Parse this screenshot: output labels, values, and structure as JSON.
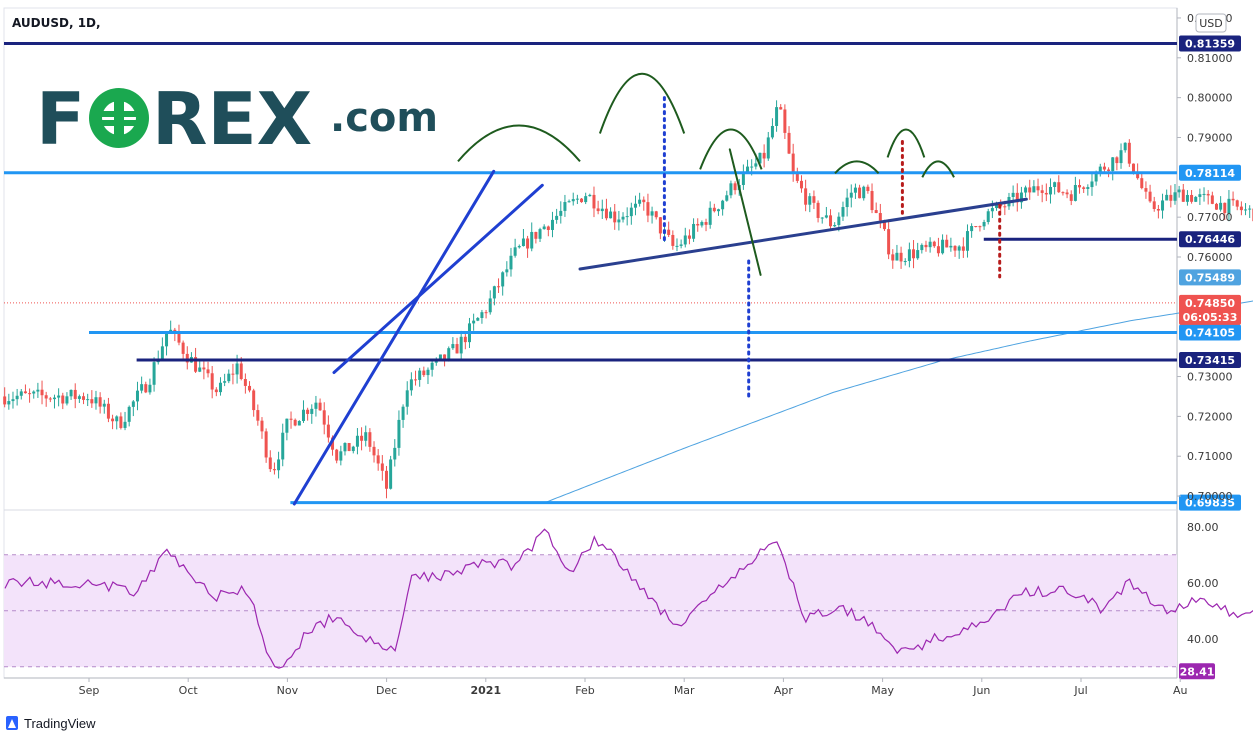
{
  "header": {
    "symbol": "AUDUSD, 1D,",
    "currency": "USD"
  },
  "logo": {
    "text_f": "F",
    "text_rest": "REX",
    "text_com": ".com",
    "brand_color": "#1f4e5a",
    "accent_color": "#1aa84f"
  },
  "footer": {
    "brand": "TradingView"
  },
  "colors": {
    "up": "#26a69a",
    "down": "#ef5350",
    "level_light": "#2196f3",
    "level_dark": "#1a237e",
    "trendline": "#1f3fd1",
    "neckline": "#2a3f8f",
    "arc": "#1e5b1e",
    "ma": "#4fa3e0",
    "rsi": "#9c27b0",
    "rsi_band": "#f3e3fa"
  },
  "chart_data": [
    {
      "type": "candlestick",
      "title": "AUDUSD, 1D,",
      "x_axis": {
        "ticks": [
          "Sep",
          "Oct",
          "Nov",
          "Dec",
          "2021",
          "Feb",
          "Mar",
          "Apr",
          "May",
          "Jun",
          "Jul",
          "Au"
        ]
      },
      "y_axis": {
        "ylim": [
          0.6965,
          0.8225
        ],
        "ticks": [
          "0.82000",
          "0.81000",
          "0.80000",
          "0.79000",
          "0.77000",
          "0.76000",
          "0.73000",
          "0.72000",
          "0.71000",
          "0.70000"
        ]
      },
      "price_levels": [
        {
          "label": "0.81359",
          "value": 0.81359,
          "style": "dark"
        },
        {
          "label": "0.78114",
          "value": 0.78114,
          "style": "light"
        },
        {
          "label": "0.76446",
          "value": 0.76446,
          "style": "dark"
        },
        {
          "label": "0.74105",
          "value": 0.74105,
          "style": "light"
        },
        {
          "label": "0.73415",
          "value": 0.73415,
          "style": "dark"
        },
        {
          "label": "0.69835",
          "value": 0.69835,
          "style": "light"
        }
      ],
      "moving_average_last": {
        "label": "0.75489",
        "value": 0.75489
      },
      "last_price": {
        "label": "0.74850",
        "value": 0.7485,
        "countdown": "06:05:33"
      },
      "price_path": [
        {
          "x": 0.0,
          "v": 0.725
        },
        {
          "x": 0.3,
          "v": 0.718
        },
        {
          "x": 0.6,
          "v": 0.729
        },
        {
          "x": 0.8,
          "v": 0.742
        },
        {
          "x": 1.0,
          "v": 0.735
        },
        {
          "x": 1.3,
          "v": 0.726
        },
        {
          "x": 1.5,
          "v": 0.733
        },
        {
          "x": 1.7,
          "v": 0.719
        },
        {
          "x": 1.85,
          "v": 0.706
        },
        {
          "x": 2.0,
          "v": 0.718
        },
        {
          "x": 2.3,
          "v": 0.724
        },
        {
          "x": 2.5,
          "v": 0.71
        },
        {
          "x": 2.8,
          "v": 0.715
        },
        {
          "x": 3.0,
          "v": 0.702
        },
        {
          "x": 3.2,
          "v": 0.728
        },
        {
          "x": 3.4,
          "v": 0.731
        },
        {
          "x": 3.7,
          "v": 0.737
        },
        {
          "x": 4.0,
          "v": 0.747
        },
        {
          "x": 4.3,
          "v": 0.761
        },
        {
          "x": 4.6,
          "v": 0.768
        },
        {
          "x": 5.0,
          "v": 0.776
        },
        {
          "x": 5.3,
          "v": 0.77
        },
        {
          "x": 5.6,
          "v": 0.773
        },
        {
          "x": 5.9,
          "v": 0.762
        },
        {
          "x": 6.2,
          "v": 0.769
        },
        {
          "x": 6.5,
          "v": 0.778
        },
        {
          "x": 6.8,
          "v": 0.785
        },
        {
          "x": 6.95,
          "v": 0.798
        },
        {
          "x": 7.1,
          "v": 0.78
        },
        {
          "x": 7.3,
          "v": 0.772
        },
        {
          "x": 7.5,
          "v": 0.768
        },
        {
          "x": 7.7,
          "v": 0.777
        },
        {
          "x": 7.85,
          "v": 0.776
        },
        {
          "x": 8.1,
          "v": 0.76
        },
        {
          "x": 8.5,
          "v": 0.762
        },
        {
          "x": 8.8,
          "v": 0.763
        },
        {
          "x": 9.0,
          "v": 0.77
        },
        {
          "x": 9.3,
          "v": 0.774
        },
        {
          "x": 9.6,
          "v": 0.778
        },
        {
          "x": 9.9,
          "v": 0.776
        },
        {
          "x": 10.2,
          "v": 0.782
        },
        {
          "x": 10.45,
          "v": 0.787
        },
        {
          "x": 10.7,
          "v": 0.772
        },
        {
          "x": 11.0,
          "v": 0.776
        },
        {
          "x": 11.3,
          "v": 0.774
        },
        {
          "x": 11.6,
          "v": 0.772
        },
        {
          "x": 12.0,
          "v": 0.769
        },
        {
          "x": 12.3,
          "v": 0.765
        },
        {
          "x": 12.6,
          "v": 0.77
        },
        {
          "x": 12.9,
          "v": 0.773
        },
        {
          "x": 13.2,
          "v": 0.772
        },
        {
          "x": 13.4,
          "v": 0.764
        },
        {
          "x": 13.55,
          "v": 0.7485
        }
      ],
      "moving_average": [
        {
          "x": 4.6,
          "v": 0.6984
        },
        {
          "x": 6.0,
          "v": 0.712
        },
        {
          "x": 7.5,
          "v": 0.726
        },
        {
          "x": 8.6,
          "v": 0.734
        },
        {
          "x": 9.5,
          "v": 0.739
        },
        {
          "x": 10.5,
          "v": 0.744
        },
        {
          "x": 11.5,
          "v": 0.748
        },
        {
          "x": 12.5,
          "v": 0.752
        },
        {
          "x": 13.55,
          "v": 0.7549
        }
      ]
    },
    {
      "type": "line",
      "title": "RSI",
      "y_axis": {
        "ylim": [
          26,
          86
        ],
        "ticks": [
          "80.00",
          "60.00",
          "40.00"
        ]
      },
      "bands": {
        "upper": 70,
        "middle": 50,
        "lower": 30
      },
      "last": {
        "label": "28.41",
        "value": 28.41
      },
      "series": [
        {
          "x": 0.0,
          "v": 60
        },
        {
          "x": 0.5,
          "v": 57
        },
        {
          "x": 0.8,
          "v": 72
        },
        {
          "x": 1.0,
          "v": 63
        },
        {
          "x": 1.3,
          "v": 55
        },
        {
          "x": 1.6,
          "v": 58
        },
        {
          "x": 1.8,
          "v": 33
        },
        {
          "x": 1.95,
          "v": 28
        },
        {
          "x": 2.2,
          "v": 43
        },
        {
          "x": 2.5,
          "v": 48
        },
        {
          "x": 2.9,
          "v": 37
        },
        {
          "x": 3.1,
          "v": 36
        },
        {
          "x": 3.25,
          "v": 62
        },
        {
          "x": 3.6,
          "v": 63
        },
        {
          "x": 4.0,
          "v": 68
        },
        {
          "x": 4.3,
          "v": 66
        },
        {
          "x": 4.6,
          "v": 79
        },
        {
          "x": 4.85,
          "v": 64
        },
        {
          "x": 5.1,
          "v": 76
        },
        {
          "x": 5.4,
          "v": 65
        },
        {
          "x": 5.8,
          "v": 49
        },
        {
          "x": 6.0,
          "v": 45
        },
        {
          "x": 6.3,
          "v": 56
        },
        {
          "x": 6.7,
          "v": 68
        },
        {
          "x": 6.95,
          "v": 76
        },
        {
          "x": 7.2,
          "v": 47
        },
        {
          "x": 7.6,
          "v": 51
        },
        {
          "x": 7.9,
          "v": 45
        },
        {
          "x": 8.2,
          "v": 35
        },
        {
          "x": 8.6,
          "v": 41
        },
        {
          "x": 9.0,
          "v": 45
        },
        {
          "x": 9.4,
          "v": 56
        },
        {
          "x": 9.8,
          "v": 58
        },
        {
          "x": 10.2,
          "v": 51
        },
        {
          "x": 10.5,
          "v": 60
        },
        {
          "x": 10.8,
          "v": 50
        },
        {
          "x": 11.2,
          "v": 54
        },
        {
          "x": 11.6,
          "v": 48
        },
        {
          "x": 12.0,
          "v": 51
        },
        {
          "x": 12.3,
          "v": 43
        },
        {
          "x": 12.6,
          "v": 50
        },
        {
          "x": 13.0,
          "v": 48
        },
        {
          "x": 13.3,
          "v": 38
        },
        {
          "x": 13.55,
          "v": 28.41
        }
      ]
    }
  ]
}
